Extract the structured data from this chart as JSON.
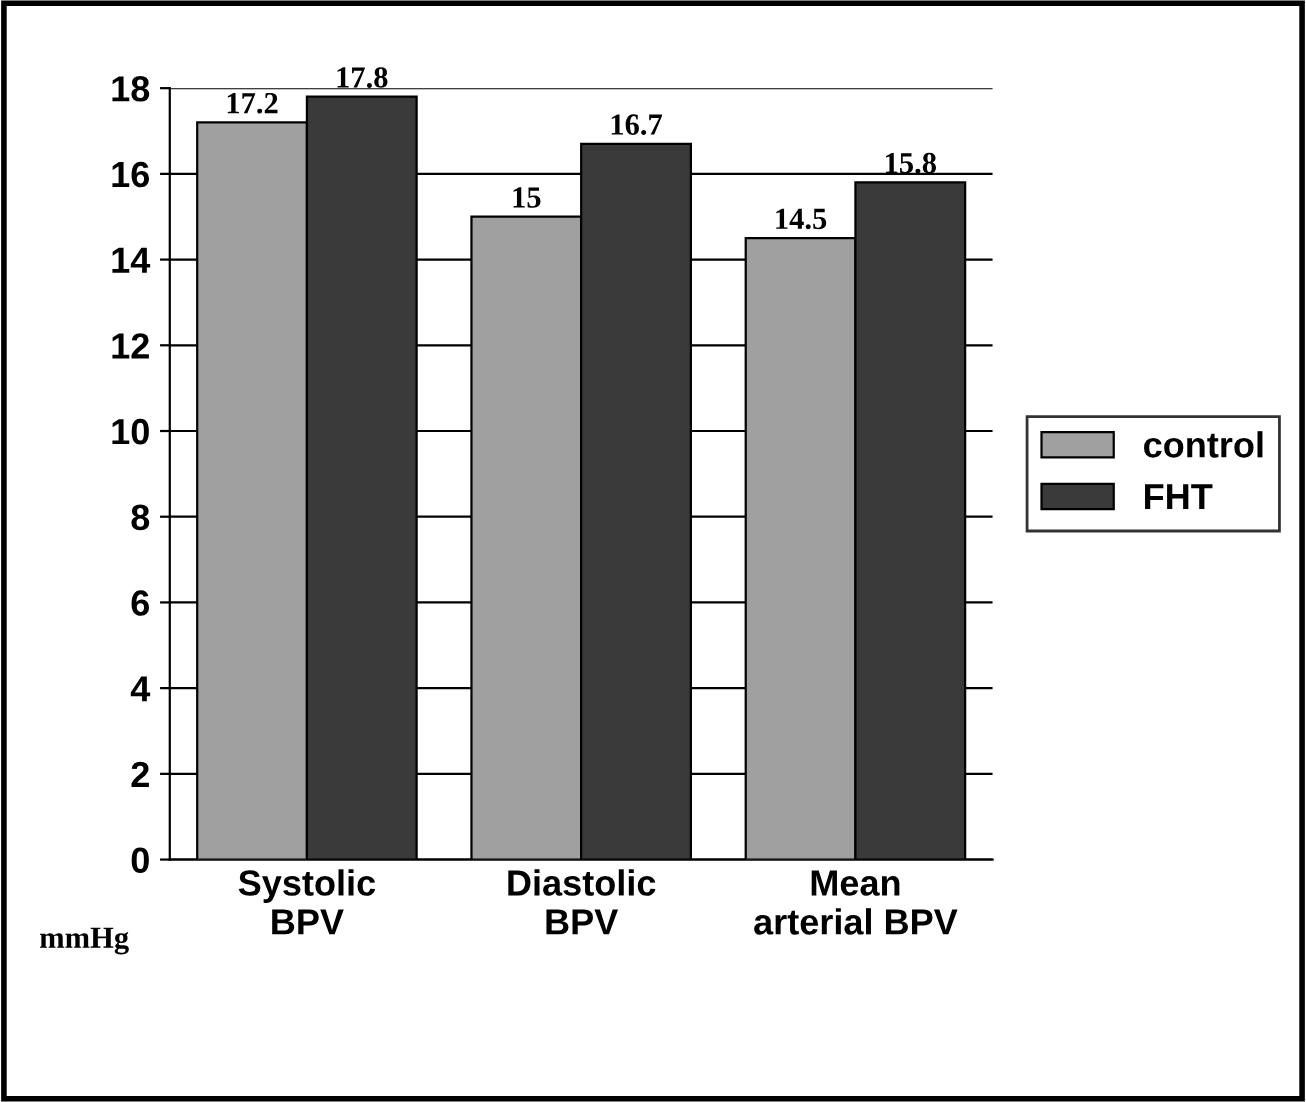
{
  "chart_data": {
    "type": "bar",
    "categories": [
      "Systolic\nBPV",
      "Diastolic\nBPV",
      "Mean\narterial BPV"
    ],
    "series": [
      {
        "name": "control",
        "color": "#a0a0a0",
        "values": [
          17.2,
          15,
          14.5
        ]
      },
      {
        "name": "FHT",
        "color": "#3a3a3a",
        "values": [
          17.8,
          16.7,
          15.8
        ]
      }
    ],
    "ylim": [
      0,
      18
    ],
    "yticks": [
      0,
      2,
      4,
      6,
      8,
      10,
      12,
      14,
      16,
      18
    ],
    "grid": "y",
    "legend": "right",
    "data_labels": true,
    "annotations": [
      "mmHg"
    ]
  }
}
